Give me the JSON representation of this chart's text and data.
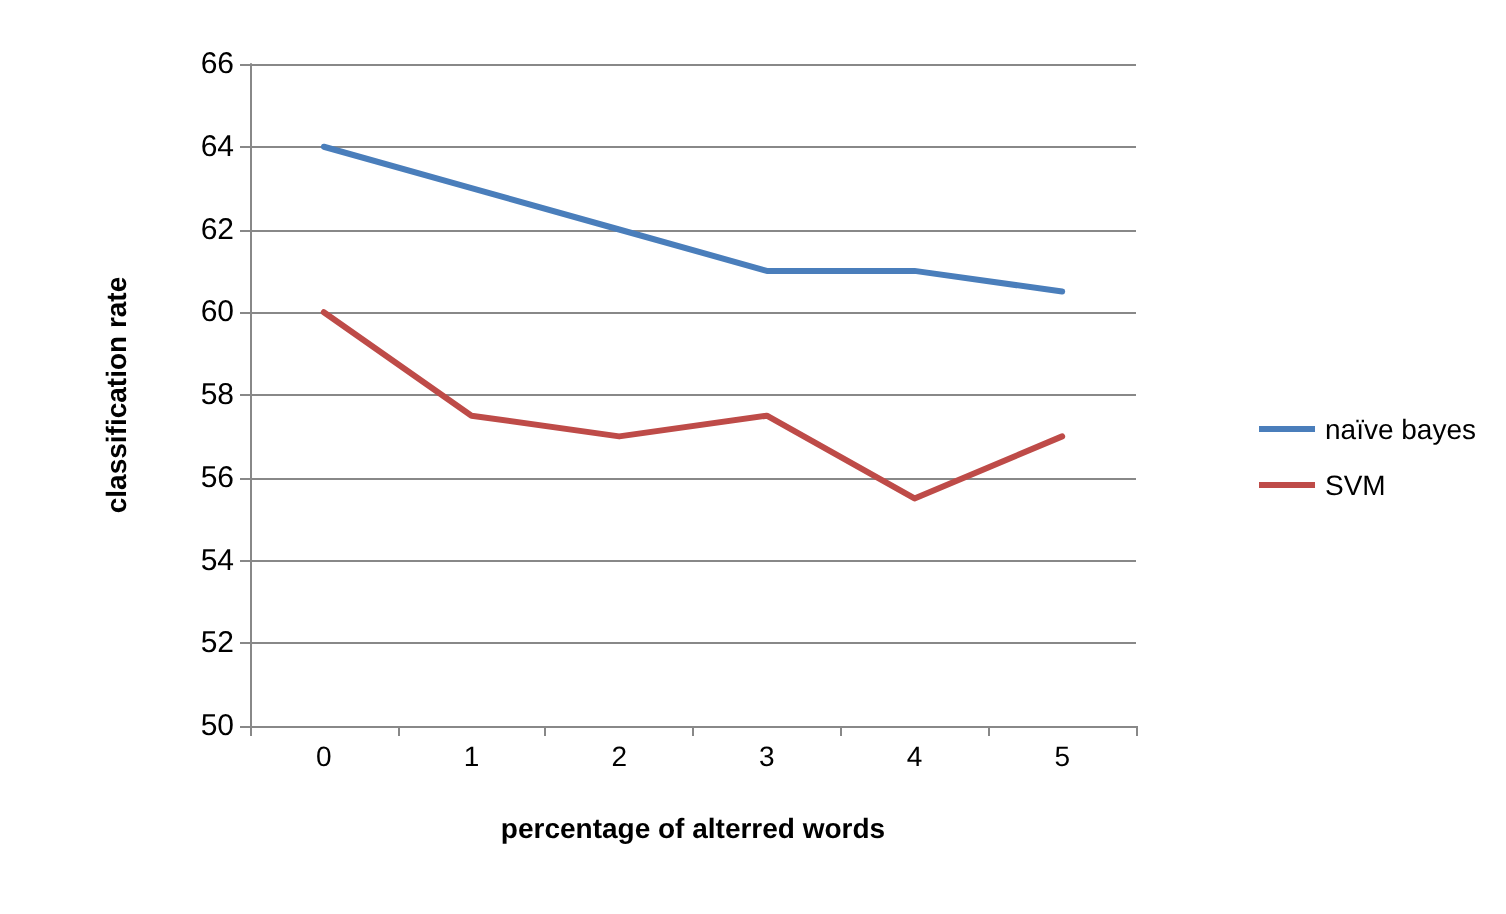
{
  "chart_data": {
    "type": "line",
    "xlabel": "percentage of alterred words",
    "ylabel": "classification rate",
    "categories": [
      "0",
      "1",
      "2",
      "3",
      "4",
      "5"
    ],
    "series": [
      {
        "name": "naïve bayes",
        "color": "#4a7ebb",
        "values": [
          64,
          63,
          62,
          61,
          61,
          60.5
        ]
      },
      {
        "name": "SVM",
        "color": "#be4b48",
        "values": [
          60,
          57.5,
          57,
          57.5,
          55.5,
          57
        ]
      }
    ],
    "ylim": [
      50,
      66
    ],
    "yticks": [
      50,
      52,
      54,
      56,
      58,
      60,
      62,
      64,
      66
    ],
    "grid": "y",
    "legend": "right",
    "marker": "none",
    "line_style": "solid"
  }
}
